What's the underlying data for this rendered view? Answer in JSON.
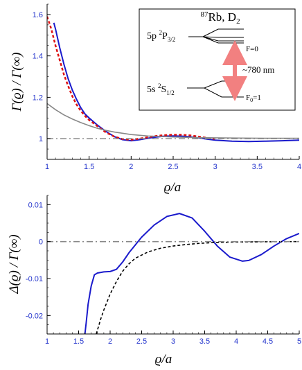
{
  "chart_data": [
    {
      "type": "line",
      "xlabel": "ϱ/a",
      "ylabel": "Γ(ϱ) / Γ(∞)",
      "xlim": [
        1,
        4
      ],
      "ylim": [
        0.9,
        1.65
      ],
      "xticks": [
        "1",
        "1.5",
        "2",
        "2.5",
        "3",
        "3.5",
        "4"
      ],
      "xtick_values": [
        1,
        1.5,
        2,
        2.5,
        3,
        3.5,
        4
      ],
      "yticks": [
        "1",
        "1.2",
        "1.4",
        "1.6"
      ],
      "ytick_values": [
        1,
        1.2,
        1.4,
        1.6
      ],
      "grid": false,
      "series": [
        {
          "style": "solid",
          "color": "#1a1acc",
          "x": [
            1.08,
            1.1,
            1.15,
            1.2,
            1.25,
            1.3,
            1.35,
            1.4,
            1.45,
            1.5,
            1.6,
            1.7,
            1.8,
            1.9,
            2.0,
            2.1,
            2.2,
            2.3,
            2.4,
            2.5,
            2.6,
            2.7,
            2.8,
            2.9,
            3.0,
            3.2,
            3.4,
            3.6,
            3.8,
            4.0
          ],
          "y": [
            1.56,
            1.53,
            1.44,
            1.36,
            1.29,
            1.235,
            1.19,
            1.15,
            1.12,
            1.1,
            1.065,
            1.035,
            1.01,
            0.995,
            0.99,
            0.995,
            1.002,
            1.008,
            1.012,
            1.013,
            1.012,
            1.009,
            1.004,
            0.998,
            0.993,
            0.988,
            0.986,
            0.988,
            0.99,
            0.993
          ]
        },
        {
          "style": "dashed",
          "color": "#dd1111",
          "x": [
            1.0,
            1.05,
            1.1,
            1.15,
            1.2,
            1.25,
            1.3,
            1.35,
            1.4,
            1.45,
            1.5,
            1.6,
            1.7,
            1.8,
            1.9,
            2.0,
            2.1,
            2.2,
            2.3,
            2.4,
            2.5,
            2.6,
            2.7,
            2.8,
            2.9,
            3.0
          ],
          "y": [
            1.59,
            1.53,
            1.45,
            1.38,
            1.31,
            1.255,
            1.205,
            1.165,
            1.135,
            1.11,
            1.09,
            1.06,
            1.03,
            1.01,
            0.998,
            0.995,
            1.0,
            1.007,
            1.013,
            1.017,
            1.019,
            1.019,
            1.016,
            1.01,
            1.004,
            0.999
          ]
        },
        {
          "style": "solid",
          "color": "#888888",
          "x": [
            1.0,
            1.1,
            1.2,
            1.3,
            1.4,
            1.5,
            1.6,
            1.7,
            1.8,
            2.0,
            2.2,
            2.5,
            2.8,
            3.0,
            3.3,
            3.6,
            4.0
          ],
          "y": [
            1.17,
            1.14,
            1.115,
            1.095,
            1.078,
            1.063,
            1.05,
            1.04,
            1.032,
            1.02,
            1.013,
            1.008,
            1.005,
            1.004,
            1.003,
            1.002,
            1.002
          ]
        },
        {
          "style": "dashdot",
          "color": "#888888",
          "x": [
            1.0,
            4.0
          ],
          "y": [
            1.0,
            1.0
          ]
        }
      ]
    },
    {
      "type": "line",
      "xlabel": "ϱ/a",
      "ylabel": "Δ(ϱ) / Γ(∞)",
      "xlim": [
        1,
        5
      ],
      "ylim": [
        -0.025,
        0.0125
      ],
      "xticks": [
        "1",
        "1.5",
        "2",
        "2.5",
        "3",
        "3.5",
        "4",
        "4.5",
        "5"
      ],
      "xtick_values": [
        1,
        1.5,
        2,
        2.5,
        3,
        3.5,
        4,
        4.5,
        5
      ],
      "yticks": [
        "-0.02",
        "-0.01",
        "0",
        "0.01"
      ],
      "ytick_values": [
        -0.02,
        -0.01,
        0,
        0.01
      ],
      "grid": false,
      "series": [
        {
          "style": "solid",
          "color": "#1a1acc",
          "x": [
            1.6,
            1.62,
            1.65,
            1.7,
            1.75,
            1.8,
            1.9,
            2.0,
            2.1,
            2.2,
            2.3,
            2.5,
            2.7,
            2.9,
            3.1,
            3.3,
            3.5,
            3.7,
            3.9,
            4.1,
            4.2,
            4.4,
            4.6,
            4.8,
            5.0
          ],
          "y": [
            -0.025,
            -0.022,
            -0.017,
            -0.012,
            -0.009,
            -0.0085,
            -0.0082,
            -0.0081,
            -0.0075,
            -0.0055,
            -0.003,
            0.0012,
            0.0045,
            0.0068,
            0.0076,
            0.0064,
            0.0028,
            -0.0012,
            -0.0042,
            -0.0053,
            -0.0051,
            -0.0035,
            -0.0012,
            0.0008,
            0.0022
          ]
        },
        {
          "style": "dashed",
          "color": "#000000",
          "x": [
            1.78,
            1.85,
            1.9,
            2.0,
            2.1,
            2.2,
            2.3,
            2.4,
            2.6,
            2.8,
            3.0,
            3.2,
            3.4,
            3.6,
            3.8,
            4.0,
            4.5,
            5.0
          ],
          "y": [
            -0.025,
            -0.021,
            -0.0185,
            -0.0142,
            -0.0108,
            -0.008,
            -0.006,
            -0.0045,
            -0.0028,
            -0.0018,
            -0.0012,
            -0.0008,
            -0.0005,
            -0.0003,
            -0.0002,
            -0.00012,
            -5e-05,
            0.0
          ]
        },
        {
          "style": "dashdot",
          "color": "#888888",
          "x": [
            1.0,
            5.0
          ],
          "y": [
            0.0,
            0.0
          ]
        }
      ]
    }
  ],
  "inset": {
    "title_sup": "87",
    "title_rest": "Rb, D",
    "title_sub": "2",
    "upper_main": "5p ",
    "upper_sup": "2",
    "upper_mid": "P",
    "upper_sub": "3/2",
    "lower_main": "5s ",
    "lower_sup": "2",
    "lower_mid": "S",
    "lower_sub": "1/2",
    "f_upper": "F=0",
    "f_lower_pre": "F",
    "f_lower_sub": "0",
    "f_lower_post": "=1",
    "wavelength": "~780 nm",
    "arrow_color": "#f28080"
  }
}
